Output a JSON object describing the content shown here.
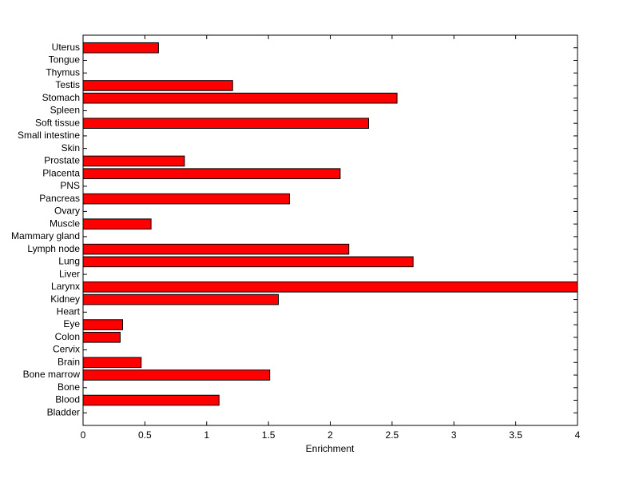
{
  "chart_data": {
    "type": "barh",
    "xlabel": "Enrichment",
    "categories": [
      "Bladder",
      "Blood",
      "Bone",
      "Bone marrow",
      "Brain",
      "Cervix",
      "Colon",
      "Eye",
      "Heart",
      "Kidney",
      "Larynx",
      "Liver",
      "Lung",
      "Lymph node",
      "Mammary gland",
      "Muscle",
      "Ovary",
      "Pancreas",
      "PNS",
      "Placenta",
      "Prostate",
      "Skin",
      "Small intestine",
      "Soft tissue",
      "Spleen",
      "Stomach",
      "Testis",
      "Thymus",
      "Tongue",
      "Uterus"
    ],
    "values": [
      0,
      1.1,
      0,
      1.51,
      0.47,
      0,
      0.3,
      0.32,
      0,
      1.58,
      4.0,
      0,
      2.67,
      2.15,
      0,
      0.55,
      0,
      1.67,
      0,
      2.08,
      0.82,
      0,
      0,
      2.31,
      0,
      2.54,
      1.21,
      0,
      0,
      0.61
    ],
    "color": "#ff0000",
    "xlim": [
      0,
      4
    ],
    "xticks": [
      0,
      0.5,
      1,
      1.5,
      2,
      2.5,
      3,
      3.5,
      4
    ]
  }
}
